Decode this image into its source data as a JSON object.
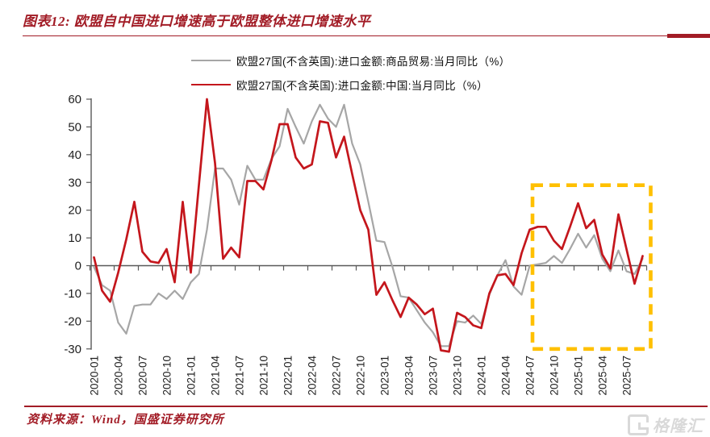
{
  "header": {
    "title": "图表12:  欧盟自中国进口增速高于欧盟整体进口增速水平"
  },
  "legend": {
    "items": [
      {
        "label": "欧盟27国(不含英国):进口金额:商品贸易:当月同比（%）",
        "color": "#A6A6A6"
      },
      {
        "label": "欧盟27国(不含英国):进口金额:中国:当月同比（%）",
        "color": "#C4161C"
      }
    ]
  },
  "source": {
    "text": "资料来源：Wind，国盛证券研究所"
  },
  "watermark": {
    "icon": "gelonghui-logo",
    "text": "格隆汇"
  },
  "colors": {
    "accent": "#A21C26",
    "axis": "#595959",
    "tick_text": "#1f1f1f",
    "series_total": "#A6A6A6",
    "series_china": "#C4161C",
    "highlight": "#FFC000",
    "watermark": "#D9D9D9"
  },
  "chart_data": {
    "type": "line",
    "title": "图表12: 欧盟自中国进口增速高于欧盟整体进口增速水平",
    "xlabel": "",
    "ylabel": "",
    "ylim": [
      -30,
      60
    ],
    "y_ticks": [
      60,
      50,
      40,
      30,
      20,
      10,
      0,
      -10,
      -20,
      -30
    ],
    "x_tick_every": 3,
    "grid": false,
    "legend_position": "top",
    "categories": [
      "2020-01",
      "2020-02",
      "2020-03",
      "2020-04",
      "2020-05",
      "2020-06",
      "2020-07",
      "2020-08",
      "2020-09",
      "2020-10",
      "2020-11",
      "2020-12",
      "2021-01",
      "2021-02",
      "2021-03",
      "2021-04",
      "2021-05",
      "2021-06",
      "2021-07",
      "2021-08",
      "2021-09",
      "2021-10",
      "2021-11",
      "2021-12",
      "2022-01",
      "2022-02",
      "2022-03",
      "2022-04",
      "2022-05",
      "2022-06",
      "2022-07",
      "2022-08",
      "2022-09",
      "2022-10",
      "2022-11",
      "2022-12",
      "2023-01",
      "2023-02",
      "2023-03",
      "2023-04",
      "2023-05",
      "2023-06",
      "2023-07",
      "2023-08",
      "2023-09",
      "2023-10",
      "2023-11",
      "2023-12",
      "2024-01",
      "2024-02",
      "2024-03",
      "2024-04",
      "2024-05",
      "2024-06",
      "2024-07",
      "2024-08",
      "2024-09",
      "2024-10",
      "2024-11",
      "2024-12",
      "2025-01",
      "2025-02",
      "2025-03",
      "2025-04",
      "2025-05",
      "2025-06",
      "2025-07",
      "2025-08",
      "2025-09"
    ],
    "series": [
      {
        "name": "欧盟27国(不含英国):进口金额:商品贸易:当月同比（%）",
        "color": "#A6A6A6",
        "values": [
          -0.5,
          -7,
          -9,
          -20.5,
          -24.5,
          -14.5,
          -14,
          -14,
          -10,
          -12,
          -9,
          -12,
          -6,
          -3,
          13,
          35,
          35,
          31,
          22,
          36,
          31,
          31,
          38.5,
          43,
          56.5,
          50,
          44,
          52,
          58,
          53,
          50,
          58,
          44,
          36.5,
          23,
          9,
          8.5,
          -0.5,
          -11,
          -11.5,
          -16,
          -20.5,
          -24,
          -29,
          -29,
          -20,
          -20.5,
          -18,
          -21,
          -10.5,
          -3.5,
          2,
          -7.5,
          -10.5,
          0,
          0.5,
          1,
          3.5,
          1,
          6,
          11.5,
          6.5,
          11,
          2.5,
          -2,
          5.5,
          -2,
          -3,
          2.5
        ]
      },
      {
        "name": "欧盟27国(不含英国):进口金额:中国:当月同比（%）",
        "color": "#C4161C",
        "values": [
          3,
          -9,
          -13,
          -2.5,
          9.5,
          23,
          5,
          1.5,
          1,
          6,
          -6,
          23,
          -2.5,
          29,
          60,
          37,
          2.5,
          6.5,
          3,
          30.5,
          30.5,
          27.5,
          38,
          51,
          51,
          39,
          35,
          36.5,
          52,
          51.5,
          39,
          46.5,
          33,
          20,
          13,
          -10.5,
          -6,
          -12.5,
          -18.5,
          -11.5,
          -14,
          -17.5,
          -15.5,
          -30.5,
          -31,
          -17,
          -18.5,
          -21.5,
          -22.5,
          -10,
          -3.5,
          -3,
          -7,
          4.5,
          13,
          14,
          14,
          9,
          6,
          14,
          22.5,
          13.5,
          16.5,
          4,
          -1,
          18.5,
          6,
          -6.5,
          3.5
        ]
      }
    ],
    "highlight_box": {
      "x_from": "2024-08",
      "x_to": "2025-09",
      "y_from": -30,
      "y_to": 29,
      "color": "#FFC000",
      "line_style": "dashed"
    }
  }
}
